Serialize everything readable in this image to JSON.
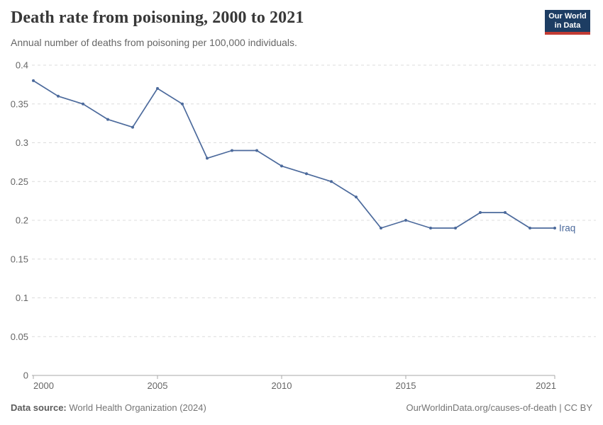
{
  "header": {
    "title": "Death rate from poisoning, 2000 to 2021",
    "subtitle": "Annual number of deaths from poisoning per 100,000 individuals.",
    "logo": {
      "line1": "Our World",
      "line2": "in Data"
    }
  },
  "chart_data": {
    "type": "line",
    "title": "Death rate from poisoning, 2000 to 2021",
    "xlabel": "",
    "ylabel": "",
    "x": [
      2000,
      2001,
      2002,
      2003,
      2004,
      2005,
      2006,
      2007,
      2008,
      2009,
      2010,
      2011,
      2012,
      2013,
      2014,
      2015,
      2016,
      2017,
      2018,
      2019,
      2020,
      2021
    ],
    "series": [
      {
        "name": "Iraq",
        "values": [
          0.38,
          0.36,
          0.35,
          0.33,
          0.32,
          0.37,
          0.35,
          0.28,
          0.29,
          0.29,
          0.27,
          0.26,
          0.25,
          0.23,
          0.19,
          0.2,
          0.19,
          0.19,
          0.21,
          0.21,
          0.19,
          0.19
        ]
      }
    ],
    "xlim": [
      2000,
      2021
    ],
    "ylim": [
      0,
      0.4
    ],
    "xticks": [
      2000,
      2005,
      2010,
      2015,
      2021
    ],
    "yticks": [
      0,
      0.05,
      0.1,
      0.15,
      0.2,
      0.25,
      0.3,
      0.35,
      0.4
    ],
    "ytick_labels": [
      "0",
      "0.05",
      "0.1",
      "0.15",
      "0.2",
      "0.25",
      "0.3",
      "0.35",
      "0.4"
    ],
    "grid": "horizontal-dashed",
    "legend_position": "end-of-line",
    "end_label": "Iraq"
  },
  "footer": {
    "source_label": "Data source:",
    "source_text": "World Health Organization (2024)",
    "credit": "OurWorldinData.org/causes-of-death | CC BY"
  },
  "colors": {
    "line": "#4c6a9c",
    "grid": "#dcdcdc",
    "axis": "#a8a8a8",
    "tick_text": "#666666",
    "title": "#383838",
    "subtitle": "#666666",
    "footer_text": "#757575",
    "logo_bg": "#1d3d63",
    "logo_bar": "#c23b34",
    "logo_text": "#ffffff"
  }
}
